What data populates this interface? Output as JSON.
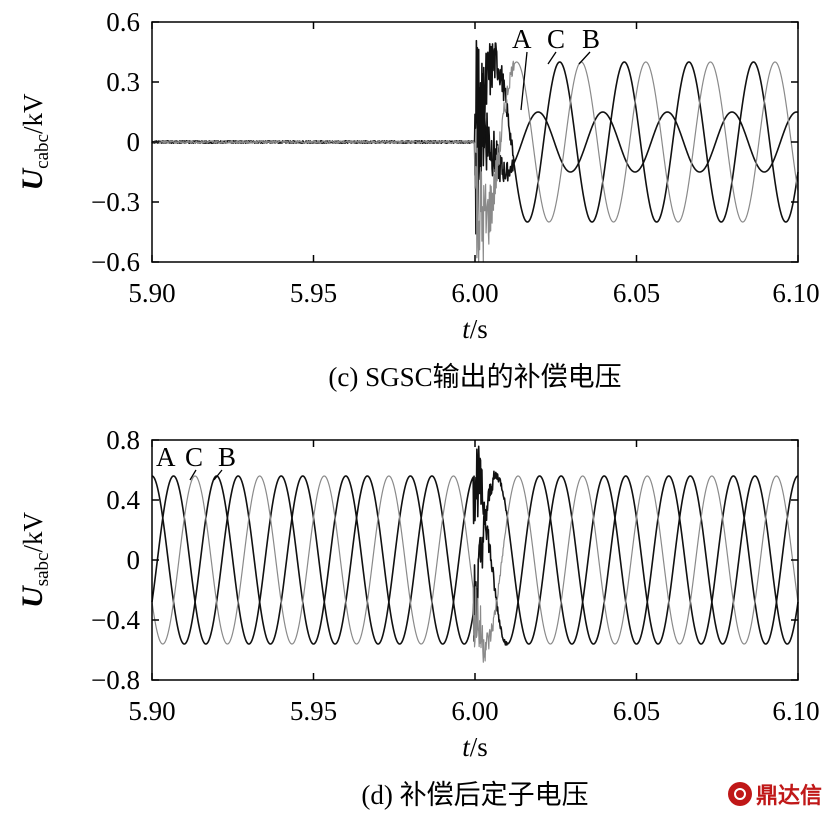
{
  "chart_data": [
    {
      "type": "line",
      "panel": "c",
      "caption": "(c) SGSC输出的补偿电压",
      "ylabel_symbol": "U",
      "ylabel_sub": "cabc",
      "ylabel_unit": "/kV",
      "xlabel_symbol": "t",
      "xlabel_unit": "/s",
      "xlim": [
        5.9,
        6.1
      ],
      "ylim": [
        -0.6,
        0.6
      ],
      "xticks": [
        "5.90",
        "5.95",
        "6.00",
        "6.05",
        "6.10"
      ],
      "yticks": [
        "0.6",
        "0.3",
        "0",
        "−0.3",
        "−0.6"
      ],
      "frequency_hz": 50,
      "fault_onset": 6.0,
      "series": [
        {
          "name": "A",
          "color": "#111111",
          "amplitude_after": 0.15,
          "phase_deg": 98,
          "value_before": 0.0
        },
        {
          "name": "B",
          "color": "#111111",
          "amplitude_after": 0.4,
          "phase_deg": -22,
          "value_before": 0.0
        },
        {
          "name": "C",
          "color": "#8a8a8a",
          "amplitude_after": 0.4,
          "phase_deg": 218,
          "value_before": 0.0
        }
      ],
      "phase_labels": [
        "A",
        "C",
        "B"
      ]
    },
    {
      "type": "line",
      "panel": "d",
      "caption": "(d) 补偿后定子电压",
      "ylabel_symbol": "U",
      "ylabel_sub": "sabc",
      "ylabel_unit": "/kV",
      "xlabel_symbol": "t",
      "xlabel_unit": "/s",
      "xlim": [
        5.9,
        6.1
      ],
      "ylim": [
        -0.8,
        0.8
      ],
      "xticks": [
        "5.90",
        "5.95",
        "6.00",
        "6.05",
        "6.10"
      ],
      "yticks": [
        "0.8",
        "0.4",
        "0",
        "−0.4",
        "−0.8"
      ],
      "frequency_hz": 50,
      "disturbance_at": 6.0,
      "series": [
        {
          "name": "A",
          "color": "#111111",
          "amplitude": 0.56,
          "phase_deg": 90
        },
        {
          "name": "B",
          "color": "#111111",
          "amplitude": 0.56,
          "phase_deg": -30
        },
        {
          "name": "C",
          "color": "#8a8a8a",
          "amplitude": 0.56,
          "phase_deg": 210
        }
      ],
      "phase_labels": [
        "A",
        "C",
        "B"
      ]
    }
  ],
  "watermark": {
    "text": "鼎达信",
    "color": "#c01818"
  }
}
